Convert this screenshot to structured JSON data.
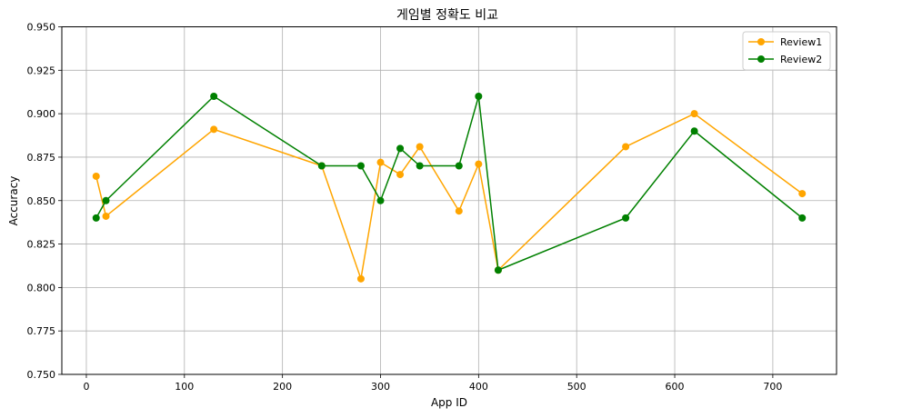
{
  "chart_data": {
    "type": "line",
    "title": "게임별 정확도 비교",
    "xlabel": "App ID",
    "ylabel": "Accuracy",
    "xlim": [
      -25,
      765
    ],
    "ylim": [
      0.75,
      0.95
    ],
    "xticks": [
      0,
      100,
      200,
      300,
      400,
      500,
      600,
      700
    ],
    "yticks": [
      0.75,
      0.775,
      0.8,
      0.825,
      0.85,
      0.875,
      0.9,
      0.925,
      0.95
    ],
    "xtick_labels": [
      "0",
      "100",
      "200",
      "300",
      "400",
      "500",
      "600",
      "700"
    ],
    "ytick_labels": [
      "0.750",
      "0.775",
      "0.800",
      "0.825",
      "0.850",
      "0.875",
      "0.900",
      "0.925",
      "0.950"
    ],
    "grid": true,
    "legend_position": "top-right",
    "series": [
      {
        "name": "Review1",
        "color": "#ffa500",
        "x": [
          10,
          20,
          130,
          240,
          280,
          300,
          320,
          340,
          380,
          400,
          420,
          550,
          620,
          730
        ],
        "y": [
          0.864,
          0.841,
          0.891,
          0.87,
          0.805,
          0.872,
          0.865,
          0.881,
          0.844,
          0.871,
          0.81,
          0.881,
          0.9,
          0.854
        ]
      },
      {
        "name": "Review2",
        "color": "#008000",
        "x": [
          10,
          20,
          130,
          240,
          280,
          300,
          320,
          340,
          380,
          400,
          420,
          550,
          620,
          730
        ],
        "y": [
          0.84,
          0.85,
          0.91,
          0.87,
          0.87,
          0.85,
          0.88,
          0.87,
          0.87,
          0.91,
          0.81,
          0.84,
          0.89,
          0.84
        ]
      }
    ]
  }
}
